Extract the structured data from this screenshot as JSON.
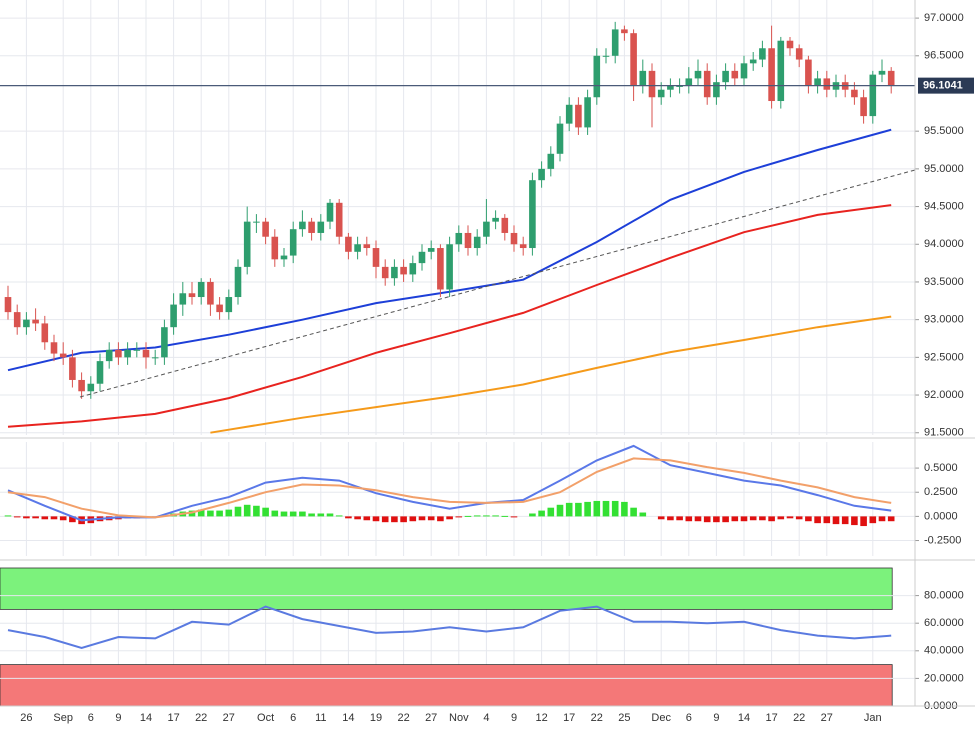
{
  "chart_data": [
    {
      "type": "candlestick",
      "categories": [
        null,
        null,
        "26",
        null,
        null,
        null,
        "Sep",
        null,
        null,
        "6",
        null,
        null,
        "9",
        null,
        null,
        "14",
        null,
        null,
        "17",
        null,
        null,
        "22",
        null,
        null,
        "27",
        null,
        null,
        null,
        "Oct",
        null,
        null,
        "6",
        null,
        null,
        "11",
        null,
        null,
        "14",
        null,
        null,
        "19",
        null,
        null,
        "22",
        null,
        null,
        "27",
        null,
        null,
        "Nov",
        null,
        null,
        "4",
        null,
        null,
        "9",
        null,
        null,
        "12",
        null,
        null,
        "17",
        null,
        null,
        "22",
        null,
        null,
        "25",
        null,
        null,
        null,
        "Dec",
        null,
        null,
        "6",
        null,
        null,
        "9",
        null,
        null,
        "14",
        null,
        null,
        "17",
        null,
        null,
        "22",
        null,
        null,
        "27",
        null,
        null,
        null,
        null,
        "Jan",
        null,
        null
      ],
      "open": [
        93.3,
        93.1,
        92.9,
        93.0,
        92.95,
        92.7,
        92.55,
        92.5,
        92.2,
        92.05,
        92.15,
        92.45,
        92.6,
        92.5,
        92.6,
        92.6,
        92.5,
        92.5,
        92.9,
        93.2,
        93.35,
        93.3,
        93.5,
        93.2,
        93.1,
        93.3,
        93.7,
        94.3,
        94.3,
        94.1,
        93.8,
        93.85,
        94.2,
        94.3,
        94.15,
        94.3,
        94.55,
        94.1,
        93.9,
        94.0,
        93.95,
        93.7,
        93.55,
        93.7,
        93.6,
        93.75,
        93.9,
        93.95,
        93.4,
        94.0,
        94.15,
        93.95,
        94.1,
        94.3,
        94.35,
        94.15,
        94.0,
        93.95,
        94.85,
        95.0,
        95.2,
        95.6,
        95.85,
        95.55,
        95.95,
        96.5,
        96.5,
        96.85,
        96.8,
        96.1,
        96.3,
        95.95,
        96.05,
        96.1,
        96.1,
        96.2,
        96.3,
        95.95,
        96.15,
        96.3,
        96.2,
        96.4,
        96.45,
        96.6,
        95.9,
        96.7,
        96.6,
        96.45,
        96.1,
        96.2,
        96.05,
        96.15,
        96.05,
        95.95,
        95.7,
        96.25,
        96.3
      ],
      "high": [
        93.45,
        93.2,
        93.1,
        93.15,
        93.05,
        92.8,
        92.7,
        92.6,
        92.3,
        92.25,
        92.55,
        92.7,
        92.7,
        92.7,
        92.7,
        92.7,
        92.6,
        93.0,
        93.35,
        93.5,
        93.5,
        93.55,
        93.55,
        93.3,
        93.4,
        93.8,
        94.5,
        94.4,
        94.35,
        94.2,
        93.95,
        94.3,
        94.45,
        94.35,
        94.4,
        94.6,
        94.6,
        94.15,
        94.1,
        94.1,
        94.05,
        93.8,
        93.8,
        93.8,
        93.85,
        94.0,
        94.05,
        94.0,
        94.1,
        94.25,
        94.25,
        94.2,
        94.6,
        94.45,
        94.4,
        94.25,
        94.1,
        94.95,
        95.1,
        95.3,
        95.7,
        95.95,
        95.95,
        96.05,
        96.6,
        96.6,
        96.95,
        96.9,
        96.85,
        96.45,
        96.4,
        96.15,
        96.2,
        96.2,
        96.35,
        96.45,
        96.4,
        96.25,
        96.4,
        96.4,
        96.5,
        96.55,
        96.7,
        96.9,
        96.75,
        96.75,
        96.65,
        96.5,
        96.3,
        96.3,
        96.25,
        96.25,
        96.15,
        96.05,
        96.3,
        96.45,
        96.35
      ],
      "low": [
        93.0,
        92.8,
        92.8,
        92.85,
        92.6,
        92.45,
        92.4,
        92.1,
        91.95,
        91.95,
        92.05,
        92.35,
        92.4,
        92.4,
        92.5,
        92.35,
        92.4,
        92.4,
        92.8,
        93.05,
        93.2,
        93.2,
        93.05,
        93.0,
        93.0,
        93.2,
        93.6,
        94.15,
        94.0,
        93.7,
        93.7,
        93.75,
        94.1,
        94.05,
        94.05,
        94.2,
        94.0,
        93.8,
        93.8,
        93.85,
        93.55,
        93.45,
        93.45,
        93.5,
        93.5,
        93.65,
        93.8,
        93.3,
        93.3,
        93.9,
        93.85,
        93.85,
        94.0,
        94.2,
        94.05,
        93.9,
        93.85,
        93.85,
        94.75,
        94.9,
        95.1,
        95.5,
        95.45,
        95.45,
        95.85,
        96.4,
        96.4,
        96.7,
        95.9,
        96.0,
        95.55,
        95.85,
        95.95,
        96.0,
        96.0,
        96.1,
        95.85,
        95.85,
        96.05,
        96.1,
        96.1,
        96.3,
        96.35,
        95.8,
        95.8,
        96.5,
        96.35,
        96.0,
        96.0,
        95.95,
        95.95,
        95.95,
        95.85,
        95.6,
        95.6,
        96.15,
        96.0
      ],
      "close": [
        93.1,
        92.9,
        93.0,
        92.95,
        92.7,
        92.55,
        92.5,
        92.2,
        92.05,
        92.15,
        92.45,
        92.6,
        92.5,
        92.6,
        92.6,
        92.5,
        92.5,
        92.9,
        93.2,
        93.35,
        93.3,
        93.5,
        93.2,
        93.1,
        93.3,
        93.7,
        94.3,
        94.3,
        94.1,
        93.8,
        93.85,
        94.2,
        94.3,
        94.15,
        94.3,
        94.55,
        94.1,
        93.9,
        94.0,
        93.95,
        93.7,
        93.55,
        93.7,
        93.6,
        93.75,
        93.9,
        93.95,
        93.4,
        94.0,
        94.15,
        93.95,
        94.1,
        94.3,
        94.35,
        94.15,
        94.0,
        93.95,
        94.85,
        95.0,
        95.2,
        95.6,
        95.85,
        95.55,
        95.95,
        96.5,
        96.5,
        96.85,
        96.8,
        96.1,
        96.3,
        95.95,
        96.05,
        96.1,
        96.1,
        96.2,
        96.3,
        95.95,
        96.15,
        96.3,
        96.2,
        96.4,
        96.45,
        96.6,
        95.9,
        96.7,
        96.6,
        96.45,
        96.1,
        96.2,
        96.05,
        96.15,
        96.05,
        95.95,
        95.7,
        96.25,
        96.3,
        96.1
      ],
      "up_color": "#2e9e6e",
      "down_color": "#d9534f",
      "overlays": [
        {
          "type": "line",
          "color": "#1d3fd8",
          "x": [
            0,
            8,
            16,
            24,
            32,
            40,
            48,
            56,
            64,
            72,
            80,
            88,
            96
          ],
          "values": [
            92.33,
            92.56,
            92.63,
            92.8,
            93.0,
            93.22,
            93.37,
            93.53,
            94.03,
            94.59,
            94.96,
            95.25,
            95.52
          ]
        },
        {
          "type": "line",
          "color": "#e8231f",
          "x": [
            0,
            8,
            16,
            24,
            32,
            40,
            48,
            56,
            64,
            72,
            80,
            88,
            96
          ],
          "values": [
            91.58,
            91.65,
            91.75,
            91.96,
            92.24,
            92.56,
            92.82,
            93.09,
            93.46,
            93.82,
            94.16,
            94.39,
            94.52
          ]
        },
        {
          "type": "line",
          "color": "#f59a1a",
          "x": [
            22,
            24,
            32,
            40,
            48,
            56,
            64,
            72,
            80,
            88,
            96
          ],
          "values": [
            91.5,
            91.54,
            91.7,
            91.84,
            91.98,
            92.14,
            92.36,
            92.57,
            92.73,
            92.9,
            93.04
          ]
        }
      ],
      "last_price": 96.1041,
      "ylim": [
        91.47,
        97.24
      ],
      "yticks": [
        {
          "value": 91.5,
          "label": "91.5000"
        },
        {
          "value": 92.0,
          "label": "92.0000"
        },
        {
          "value": 92.5,
          "label": "92.5000"
        },
        {
          "value": 93.0,
          "label": "93.0000"
        },
        {
          "value": 93.5,
          "label": "93.5000"
        },
        {
          "value": 94.0,
          "label": "94.0000"
        },
        {
          "value": 94.5,
          "label": "94.5000"
        },
        {
          "value": 95.0,
          "label": "95.0000"
        },
        {
          "value": 95.5,
          "label": "95.5000"
        },
        {
          "value": 96.5,
          "label": "96.5000"
        },
        {
          "value": 97.0,
          "label": "97.0000"
        }
      ]
    },
    {
      "type": "macd",
      "histogram": [
        0.01,
        -0.01,
        -0.02,
        -0.02,
        -0.03,
        -0.03,
        -0.04,
        -0.06,
        -0.08,
        -0.07,
        -0.05,
        -0.04,
        -0.03,
        -0.02,
        -0.02,
        -0.01,
        -0.01,
        0.01,
        0.03,
        0.05,
        0.06,
        0.07,
        0.06,
        0.06,
        0.07,
        0.1,
        0.12,
        0.11,
        0.09,
        0.06,
        0.05,
        0.05,
        0.05,
        0.03,
        0.03,
        0.03,
        0.01,
        -0.02,
        -0.03,
        -0.04,
        -0.05,
        -0.06,
        -0.06,
        -0.06,
        -0.05,
        -0.04,
        -0.04,
        -0.05,
        -0.03,
        -0.01,
        0.005,
        0.01,
        0.01,
        0.01,
        0.005,
        -0.005,
        null,
        0.03,
        0.06,
        0.09,
        0.12,
        0.14,
        0.14,
        0.15,
        0.16,
        0.16,
        0.16,
        0.15,
        0.09,
        0.04,
        null,
        -0.03,
        -0.04,
        -0.04,
        -0.05,
        -0.05,
        -0.06,
        -0.06,
        -0.06,
        -0.05,
        -0.05,
        -0.04,
        -0.04,
        -0.05,
        -0.03,
        -0.02,
        -0.03,
        -0.05,
        -0.07,
        -0.07,
        -0.08,
        -0.08,
        -0.09,
        -0.1,
        -0.07,
        -0.05,
        -0.05
      ],
      "pos_color": "#33e033",
      "neg_color": "#e01010",
      "series": [
        {
          "color": "#5a78e8",
          "x": [
            0,
            4,
            8,
            12,
            16,
            20,
            24,
            28,
            32,
            36,
            40,
            44,
            48,
            52,
            56,
            60,
            64,
            68,
            72,
            76,
            80,
            84,
            88,
            92,
            96
          ],
          "values": [
            0.27,
            0.11,
            -0.04,
            -0.01,
            -0.01,
            0.11,
            0.2,
            0.35,
            0.4,
            0.37,
            0.24,
            0.15,
            0.08,
            0.14,
            0.17,
            0.37,
            0.58,
            0.73,
            0.53,
            0.45,
            0.37,
            0.32,
            0.22,
            0.11,
            0.06
          ]
        },
        {
          "color": "#f2a06a",
          "x": [
            0,
            4,
            8,
            12,
            16,
            20,
            24,
            28,
            32,
            36,
            40,
            44,
            48,
            52,
            56,
            60,
            64,
            68,
            72,
            76,
            80,
            84,
            88,
            92,
            96
          ],
          "values": [
            0.25,
            0.2,
            0.08,
            0.01,
            -0.01,
            0.04,
            0.14,
            0.25,
            0.33,
            0.32,
            0.27,
            0.2,
            0.15,
            0.14,
            0.15,
            0.25,
            0.46,
            0.6,
            0.58,
            0.51,
            0.45,
            0.37,
            0.3,
            0.2,
            0.14
          ]
        }
      ],
      "ylim": [
        -0.41,
        0.77
      ],
      "yticks": [
        {
          "value": 0.5,
          "label": "0.5000"
        },
        {
          "value": 0.25,
          "label": "0.2500"
        },
        {
          "value": 0,
          "label": "0.0000"
        },
        {
          "value": -0.25,
          "label": "-0.2500"
        }
      ]
    },
    {
      "type": "rsi",
      "series": [
        {
          "color": "#5a7ae0",
          "x": [
            0,
            4,
            8,
            12,
            16,
            20,
            24,
            28,
            32,
            36,
            40,
            44,
            48,
            52,
            56,
            60,
            64,
            68,
            72,
            76,
            80,
            84,
            88,
            92,
            96
          ],
          "values": [
            55,
            50,
            42,
            50,
            49,
            61,
            59,
            72,
            63,
            58,
            53,
            54,
            57,
            54,
            57,
            69,
            72,
            61,
            61,
            60,
            61,
            55,
            51,
            49,
            51
          ]
        }
      ],
      "bands": [
        {
          "from": 70,
          "to": 100,
          "color": "#7cf27c"
        },
        {
          "from": 0,
          "to": 30,
          "color": "#f47878"
        }
      ],
      "ylim": [
        0,
        100
      ],
      "yticks": [
        {
          "value": 0,
          "label": "0.0000"
        },
        {
          "value": 20,
          "label": "20.0000"
        },
        {
          "value": 40,
          "label": "40.0000"
        },
        {
          "value": 60,
          "label": "60.0000"
        },
        {
          "value": 80,
          "label": "80.0000"
        }
      ]
    }
  ]
}
